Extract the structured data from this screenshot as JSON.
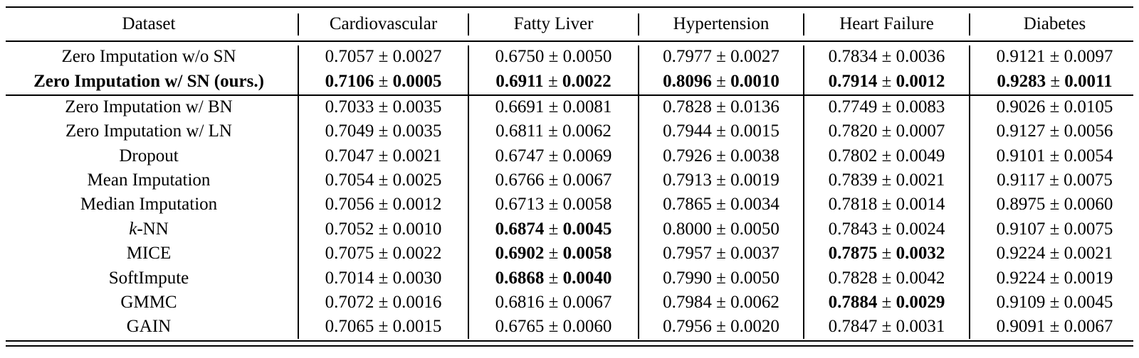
{
  "table": {
    "header": [
      "Dataset",
      "Cardiovascular",
      "Fatty Liver",
      "Hypertension",
      "Heart Failure",
      "Diabetes"
    ],
    "rows": [
      {
        "method": "Zero Imputation w/o SN",
        "method_bold": false,
        "cells": [
          {
            "mean": "0.7057",
            "std": "0.0027",
            "bold": false
          },
          {
            "mean": "0.6750",
            "std": "0.0050",
            "bold": false
          },
          {
            "mean": "0.7977",
            "std": "0.0027",
            "bold": false
          },
          {
            "mean": "0.7834",
            "std": "0.0036",
            "bold": false
          },
          {
            "mean": "0.9121",
            "std": "0.0097",
            "bold": false
          }
        ]
      },
      {
        "method": "Zero Imputation w/ SN (ours.)",
        "method_bold": true,
        "cells": [
          {
            "mean": "0.7106",
            "std": "0.0005",
            "bold": true
          },
          {
            "mean": "0.6911",
            "std": "0.0022",
            "bold": true
          },
          {
            "mean": "0.8096",
            "std": "0.0010",
            "bold": true
          },
          {
            "mean": "0.7914",
            "std": "0.0012",
            "bold": true
          },
          {
            "mean": "0.9283",
            "std": "0.0011",
            "bold": true
          }
        ]
      },
      {
        "method": "Zero Imputation w/ BN",
        "method_bold": false,
        "cells": [
          {
            "mean": "0.7033",
            "std": "0.0035",
            "bold": false
          },
          {
            "mean": "0.6691",
            "std": "0.0081",
            "bold": false
          },
          {
            "mean": "0.7828",
            "std": "0.0136",
            "bold": false
          },
          {
            "mean": "0.7749",
            "std": "0.0083",
            "bold": false
          },
          {
            "mean": "0.9026",
            "std": "0.0105",
            "bold": false
          }
        ]
      },
      {
        "method": "Zero Imputation w/ LN",
        "method_bold": false,
        "cells": [
          {
            "mean": "0.7049",
            "std": "0.0035",
            "bold": false
          },
          {
            "mean": "0.6811",
            "std": "0.0062",
            "bold": false
          },
          {
            "mean": "0.7944",
            "std": "0.0015",
            "bold": false
          },
          {
            "mean": "0.7820",
            "std": "0.0007",
            "bold": false
          },
          {
            "mean": "0.9127",
            "std": "0.0056",
            "bold": false
          }
        ]
      },
      {
        "method": "Dropout",
        "method_bold": false,
        "cells": [
          {
            "mean": "0.7047",
            "std": "0.0021",
            "bold": false
          },
          {
            "mean": "0.6747",
            "std": "0.0069",
            "bold": false
          },
          {
            "mean": "0.7926",
            "std": "0.0038",
            "bold": false
          },
          {
            "mean": "0.7802",
            "std": "0.0049",
            "bold": false
          },
          {
            "mean": "0.9101",
            "std": "0.0054",
            "bold": false
          }
        ]
      },
      {
        "method": "Mean Imputation",
        "method_bold": false,
        "cells": [
          {
            "mean": "0.7054",
            "std": "0.0025",
            "bold": false
          },
          {
            "mean": "0.6766",
            "std": "0.0067",
            "bold": false
          },
          {
            "mean": "0.7913",
            "std": "0.0019",
            "bold": false
          },
          {
            "mean": "0.7839",
            "std": "0.0021",
            "bold": false
          },
          {
            "mean": "0.9117",
            "std": "0.0075",
            "bold": false
          }
        ]
      },
      {
        "method": "Median Imputation",
        "method_bold": false,
        "cells": [
          {
            "mean": "0.7056",
            "std": "0.0012",
            "bold": false
          },
          {
            "mean": "0.6713",
            "std": "0.0058",
            "bold": false
          },
          {
            "mean": "0.7865",
            "std": "0.0034",
            "bold": false
          },
          {
            "mean": "0.7818",
            "std": "0.0014",
            "bold": false
          },
          {
            "mean": "0.8975",
            "std": "0.0060",
            "bold": false
          }
        ]
      },
      {
        "method": "k-NN",
        "method_bold": false,
        "cells": [
          {
            "mean": "0.7052",
            "std": "0.0010",
            "bold": false
          },
          {
            "mean": "0.6874",
            "std": "0.0045",
            "bold": true
          },
          {
            "mean": "0.8000",
            "std": "0.0050",
            "bold": false
          },
          {
            "mean": "0.7843",
            "std": "0.0024",
            "bold": false
          },
          {
            "mean": "0.9107",
            "std": "0.0075",
            "bold": false
          }
        ]
      },
      {
        "method": "MICE",
        "method_bold": false,
        "cells": [
          {
            "mean": "0.7075",
            "std": "0.0022",
            "bold": false
          },
          {
            "mean": "0.6902",
            "std": "0.0058",
            "bold": true
          },
          {
            "mean": "0.7957",
            "std": "0.0037",
            "bold": false
          },
          {
            "mean": "0.7875",
            "std": "0.0032",
            "bold": true
          },
          {
            "mean": "0.9224",
            "std": "0.0021",
            "bold": false
          }
        ]
      },
      {
        "method": "SoftImpute",
        "method_bold": false,
        "cells": [
          {
            "mean": "0.7014",
            "std": "0.0030",
            "bold": false
          },
          {
            "mean": "0.6868",
            "std": "0.0040",
            "bold": true
          },
          {
            "mean": "0.7990",
            "std": "0.0050",
            "bold": false
          },
          {
            "mean": "0.7828",
            "std": "0.0042",
            "bold": false
          },
          {
            "mean": "0.9224",
            "std": "0.0019",
            "bold": false
          }
        ]
      },
      {
        "method": "GMMC",
        "method_bold": false,
        "cells": [
          {
            "mean": "0.7072",
            "std": "0.0016",
            "bold": false
          },
          {
            "mean": "0.6816",
            "std": "0.0067",
            "bold": false
          },
          {
            "mean": "0.7984",
            "std": "0.0062",
            "bold": false
          },
          {
            "mean": "0.7884",
            "std": "0.0029",
            "bold": true
          },
          {
            "mean": "0.9109",
            "std": "0.0045",
            "bold": false
          }
        ]
      },
      {
        "method": "GAIN",
        "method_bold": false,
        "cells": [
          {
            "mean": "0.7065",
            "std": "0.0015",
            "bold": false
          },
          {
            "mean": "0.6765",
            "std": "0.0060",
            "bold": false
          },
          {
            "mean": "0.7956",
            "std": "0.0020",
            "bold": false
          },
          {
            "mean": "0.7847",
            "std": "0.0031",
            "bold": false
          },
          {
            "mean": "0.9091",
            "std": "0.0067",
            "bold": false
          }
        ]
      }
    ]
  }
}
